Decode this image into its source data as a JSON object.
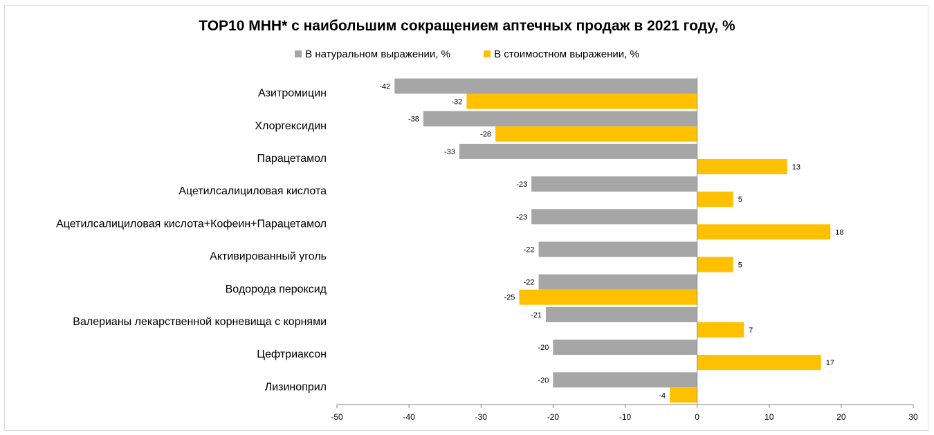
{
  "chart_data": {
    "type": "bar",
    "orientation": "horizontal",
    "title": "TOP10 МНН* с наибольшим сокращением аптечных продаж в 2021 году, %",
    "legend_position": "top",
    "categories": [
      "Азитромицин",
      "Хлоргексидин",
      "Парацетамол",
      "Ацетилсалициловая кислота",
      "Ацетилсалициловая кислота+Кофеин+Парацетамол",
      "Активированный уголь",
      "Водорода пероксид",
      "Валерианы лекарственной корневища с корнями",
      "Цефтриаксон",
      "Лизиноприл"
    ],
    "series": [
      {
        "name": "В натуральном выражении, %",
        "color": "#a6a6a6",
        "values": [
          -42,
          -38,
          -33,
          -23,
          -23,
          -22,
          -22,
          -21,
          -20,
          -20
        ],
        "labels": [
          "-42",
          "-38",
          "-33",
          "-23",
          "-23",
          "-22",
          "-22",
          "-21",
          "-20",
          "-20"
        ]
      },
      {
        "name": "В стоимостном выражении, %",
        "color": "#ffc000",
        "values": [
          -32,
          -28,
          12.5,
          5,
          18.5,
          5,
          -24.7,
          6.5,
          17.2,
          -3.8
        ],
        "labels": [
          "-32",
          "-28",
          "13",
          "5",
          "18",
          "5",
          "-25",
          "7",
          "17",
          "-4"
        ]
      }
    ],
    "xlim": [
      -50,
      30
    ],
    "xticks": [
      -50,
      -40,
      -30,
      -20,
      -10,
      0,
      10,
      20,
      30
    ],
    "grid": false
  }
}
